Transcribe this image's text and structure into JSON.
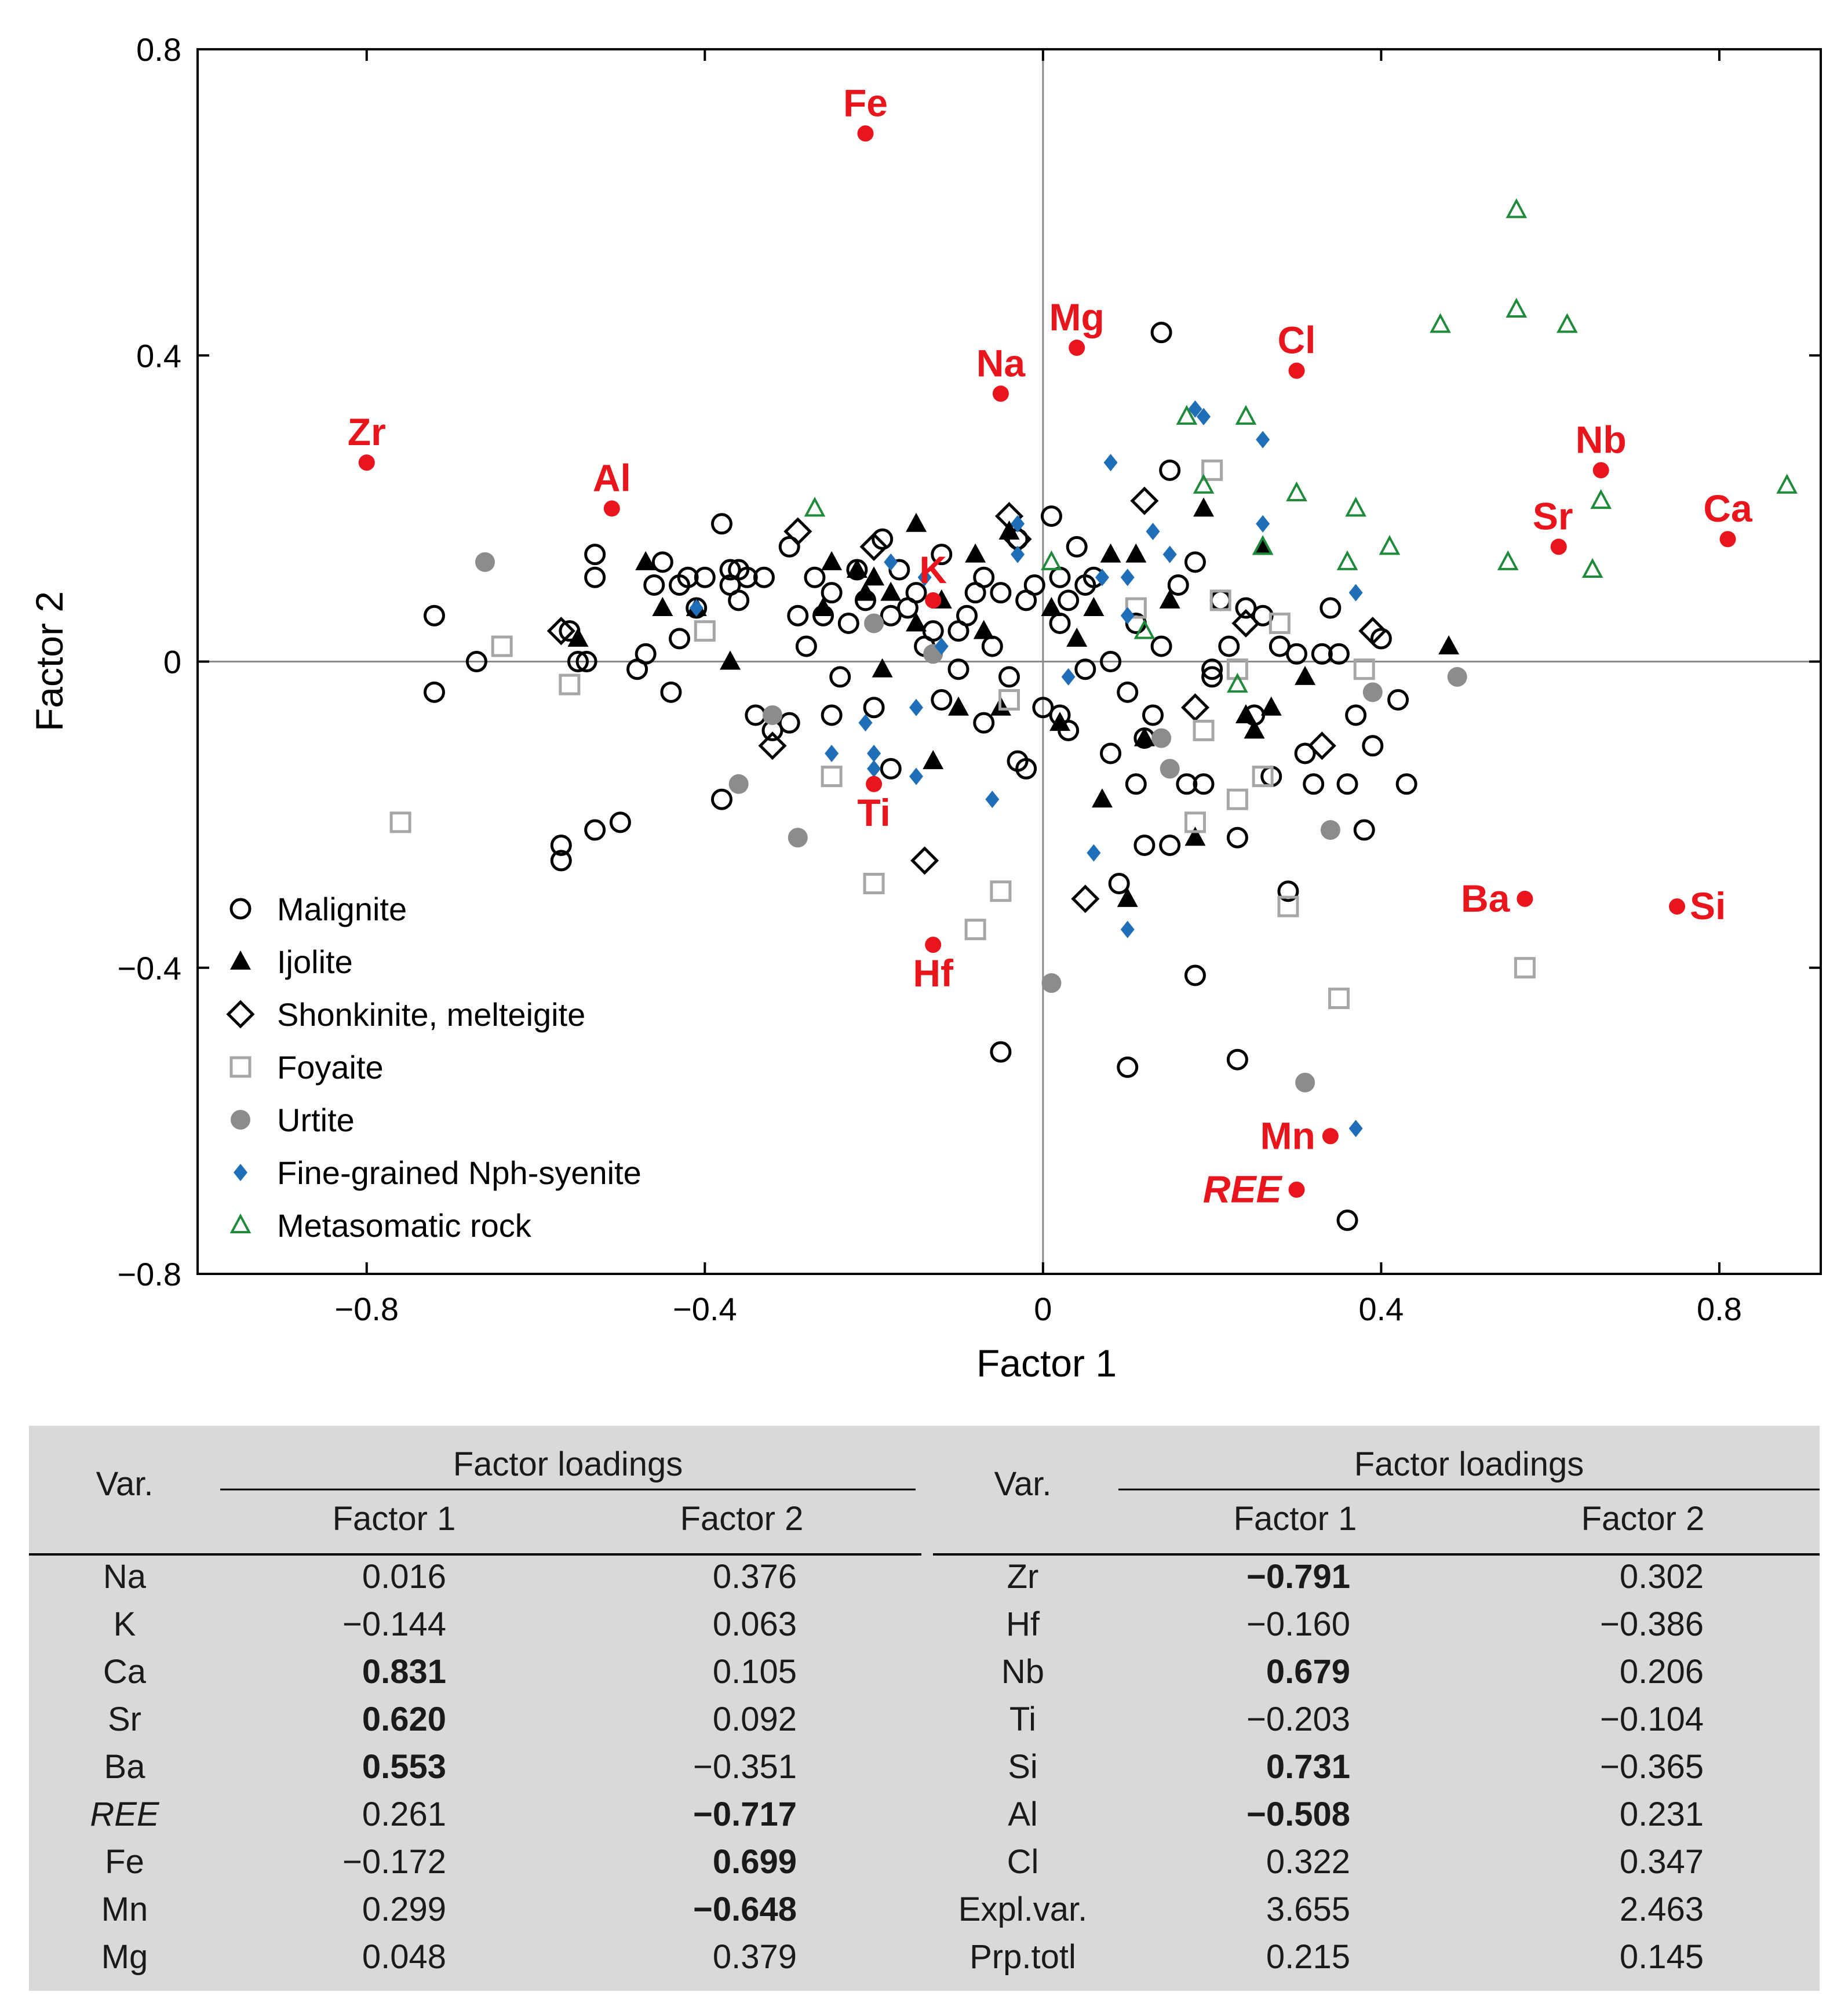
{
  "chart_data": {
    "type": "scatter",
    "xlabel": "Factor 1",
    "ylabel": "Factor 2",
    "xlim": [
      -1.0,
      0.92
    ],
    "ylim": [
      -0.8,
      0.8
    ],
    "xticks": [
      -0.8,
      -0.4,
      0,
      0.4,
      0.8
    ],
    "xtick_labels": [
      "−0.8",
      "−0.4",
      "0",
      "0.4",
      "0.8"
    ],
    "yticks": [
      -0.8,
      -0.4,
      0,
      0.4,
      0.8
    ],
    "ytick_labels": [
      "−0.8",
      "−0.4",
      "0",
      "0.4",
      "0.8"
    ],
    "legend_position": "bottom-left",
    "colors": {
      "accent": "#e8161c",
      "fine": "#1f6fb8",
      "meta": "#1e8a3a",
      "urtite": "#8c8c8c",
      "foyaite": "#a6a6a6",
      "black": "#000000",
      "table_bg": "#d9d9d9"
    },
    "series": [
      {
        "name": "Malignite",
        "marker": "circle-open",
        "x": [
          -0.72,
          -0.72,
          -0.67,
          -0.57,
          -0.57,
          -0.56,
          -0.55,
          -0.54,
          -0.53,
          -0.53,
          -0.53,
          -0.5,
          -0.48,
          -0.47,
          -0.46,
          -0.44,
          -0.43,
          -0.43,
          -0.42,
          -0.41,
          -0.4,
          -0.38,
          -0.38,
          -0.37,
          -0.37,
          -0.36,
          -0.36,
          -0.35,
          -0.34,
          -0.33,
          -0.32,
          -0.3,
          -0.29,
          -0.28,
          -0.27,
          -0.26,
          -0.25,
          -0.25,
          -0.24,
          -0.23,
          -0.22,
          -0.21,
          -0.2,
          -0.19,
          -0.18,
          -0.18,
          -0.17,
          -0.16,
          -0.14,
          -0.13,
          -0.12,
          -0.12,
          -0.1,
          -0.09,
          -0.08,
          -0.07,
          -0.07,
          -0.06,
          -0.05,
          -0.04,
          -0.03,
          -0.02,
          -0.02,
          -0.01,
          0.0,
          0.01,
          0.02,
          0.02,
          0.03,
          0.03,
          0.04,
          0.05,
          0.06,
          0.08,
          0.09,
          0.1,
          0.11,
          0.11,
          0.12,
          0.13,
          0.14,
          0.15,
          0.15,
          0.16,
          0.17,
          0.18,
          0.19,
          0.2,
          0.21,
          0.22,
          0.23,
          0.24,
          0.25,
          0.26,
          0.27,
          0.28,
          0.29,
          0.3,
          0.31,
          0.32,
          0.33,
          0.34,
          0.35,
          0.36,
          0.37,
          0.38,
          0.39,
          0.4,
          0.42,
          0.43,
          -0.05,
          0.1,
          0.18,
          0.23,
          0.36,
          -0.45,
          -0.3,
          -0.1,
          0.05,
          0.08,
          0.14,
          0.2,
          -0.15,
          0.02,
          -0.03,
          0.12
        ],
        "y": [
          0.06,
          -0.04,
          0.0,
          -0.24,
          -0.26,
          0.04,
          0.0,
          0.0,
          0.14,
          -0.22,
          0.11,
          -0.21,
          -0.01,
          0.01,
          0.1,
          -0.04,
          0.03,
          0.1,
          0.11,
          0.07,
          0.11,
          -0.18,
          0.18,
          0.1,
          0.12,
          0.08,
          0.12,
          0.11,
          -0.07,
          0.11,
          -0.09,
          0.15,
          0.06,
          0.02,
          0.11,
          0.06,
          -0.07,
          0.09,
          -0.02,
          0.05,
          0.12,
          0.08,
          -0.06,
          0.16,
          0.06,
          -0.14,
          0.12,
          0.07,
          0.02,
          0.04,
          -0.05,
          0.14,
          -0.01,
          0.06,
          0.09,
          -0.08,
          0.11,
          0.02,
          0.09,
          -0.02,
          -0.13,
          0.08,
          -0.14,
          0.1,
          -0.06,
          0.19,
          -0.07,
          0.11,
          0.08,
          -0.09,
          0.15,
          -0.01,
          0.11,
          -0.12,
          -0.29,
          -0.04,
          -0.16,
          0.05,
          -0.24,
          -0.07,
          0.43,
          0.25,
          -0.24,
          0.1,
          -0.16,
          0.13,
          -0.16,
          -0.02,
          0.08,
          0.02,
          -0.23,
          0.07,
          -0.07,
          0.06,
          -0.15,
          0.02,
          -0.3,
          0.01,
          -0.12,
          -0.16,
          0.01,
          0.07,
          0.01,
          -0.16,
          -0.07,
          -0.22,
          -0.11,
          0.03,
          -0.05,
          -0.16,
          -0.51,
          -0.53,
          -0.41,
          -0.52,
          -0.73,
          0.13,
          -0.08,
          0.04,
          0.1,
          0.0,
          0.02,
          -0.01,
          0.09,
          0.05,
          0.16,
          -0.1
        ]
      },
      {
        "name": "Ijolite",
        "marker": "triangle-filled",
        "x": [
          -0.55,
          -0.47,
          -0.45,
          -0.41,
          -0.37,
          -0.26,
          -0.25,
          -0.22,
          -0.21,
          -0.2,
          -0.19,
          -0.18,
          -0.15,
          -0.15,
          -0.12,
          -0.08,
          -0.07,
          -0.05,
          -0.04,
          0.01,
          0.02,
          0.04,
          0.06,
          0.07,
          0.08,
          0.1,
          0.11,
          0.12,
          0.15,
          0.18,
          0.19,
          0.24,
          0.25,
          0.26,
          0.27,
          0.31,
          0.48,
          -0.1,
          -0.13
        ],
        "y": [
          0.03,
          0.13,
          0.07,
          0.07,
          0.0,
          0.07,
          0.13,
          0.12,
          0.09,
          0.11,
          -0.01,
          0.09,
          0.18,
          0.05,
          0.08,
          0.14,
          0.04,
          -0.06,
          0.17,
          0.07,
          -0.08,
          0.03,
          0.07,
          -0.18,
          0.14,
          -0.31,
          0.14,
          -0.1,
          0.08,
          -0.23,
          0.2,
          -0.07,
          -0.09,
          0.15,
          -0.06,
          -0.02,
          0.02,
          -0.06,
          -0.13
        ]
      },
      {
        "name": "Shonkinite, melteigite",
        "marker": "diamond-open",
        "x": [
          -0.57,
          -0.32,
          -0.29,
          -0.2,
          -0.14,
          -0.04,
          -0.03,
          0.05,
          0.12,
          0.18,
          0.24,
          0.33,
          0.39
        ],
        "y": [
          0.04,
          -0.11,
          0.17,
          0.15,
          -0.26,
          0.19,
          0.16,
          -0.31,
          0.21,
          -0.06,
          0.05,
          -0.11,
          0.04
        ]
      },
      {
        "name": "Foyaite",
        "marker": "square-open",
        "x": [
          -0.76,
          -0.64,
          -0.56,
          -0.4,
          -0.25,
          -0.2,
          -0.08,
          -0.05,
          -0.04,
          0.11,
          0.18,
          0.19,
          0.21,
          0.2,
          0.23,
          0.26,
          0.28,
          0.29,
          0.35,
          0.38,
          0.57,
          0.23
        ],
        "y": [
          -0.21,
          0.02,
          -0.03,
          0.04,
          -0.15,
          -0.29,
          -0.35,
          -0.3,
          -0.05,
          0.07,
          -0.21,
          -0.09,
          0.08,
          0.25,
          -0.18,
          -0.15,
          0.05,
          -0.32,
          -0.44,
          -0.01,
          -0.4,
          -0.01
        ]
      },
      {
        "name": "Urtite",
        "marker": "circle-filled",
        "x": [
          -0.66,
          -0.36,
          -0.32,
          -0.29,
          -0.2,
          -0.13,
          0.01,
          0.14,
          0.15,
          0.31,
          0.34,
          0.39,
          0.49
        ],
        "y": [
          0.13,
          -0.16,
          -0.07,
          -0.23,
          0.05,
          0.01,
          -0.42,
          -0.1,
          -0.14,
          -0.55,
          -0.22,
          -0.04,
          -0.02
        ]
      },
      {
        "name": "Fine-grained Nph-syenite",
        "marker": "diamond-filled",
        "x": [
          -0.41,
          -0.25,
          -0.21,
          -0.2,
          -0.2,
          -0.18,
          -0.15,
          -0.15,
          -0.14,
          -0.12,
          -0.06,
          -0.03,
          -0.03,
          0.03,
          0.06,
          0.07,
          0.08,
          0.1,
          0.1,
          0.1,
          0.13,
          0.15,
          0.18,
          0.19,
          0.26,
          0.26,
          0.37,
          0.37
        ],
        "y": [
          0.07,
          -0.12,
          -0.08,
          -0.12,
          -0.14,
          0.13,
          -0.06,
          -0.15,
          0.11,
          0.02,
          -0.18,
          0.14,
          0.18,
          -0.02,
          -0.25,
          0.11,
          0.26,
          -0.35,
          0.11,
          0.06,
          0.17,
          0.14,
          0.33,
          0.32,
          0.18,
          0.29,
          0.09,
          -0.61
        ]
      },
      {
        "name": "Metasomatic rock",
        "marker": "triangle-open",
        "x": [
          -0.27,
          0.01,
          0.12,
          0.17,
          0.19,
          0.24,
          0.26,
          0.3,
          0.36,
          0.37,
          0.41,
          0.47,
          0.55,
          0.56,
          0.56,
          0.62,
          0.65,
          0.66,
          0.88,
          0.23
        ],
        "y": [
          0.2,
          0.13,
          0.04,
          0.32,
          0.23,
          0.32,
          0.15,
          0.22,
          0.13,
          0.2,
          0.15,
          0.44,
          0.13,
          0.46,
          0.59,
          0.44,
          0.12,
          0.21,
          0.23,
          -0.03
        ]
      }
    ],
    "variables": [
      {
        "label": "Fe",
        "x": -0.21,
        "y": 0.69,
        "pos": "above",
        "italic": false
      },
      {
        "label": "Zr",
        "x": -0.8,
        "y": 0.26,
        "pos": "above",
        "italic": false
      },
      {
        "label": "Al",
        "x": -0.51,
        "y": 0.2,
        "pos": "above",
        "italic": false
      },
      {
        "label": "Na",
        "x": -0.05,
        "y": 0.35,
        "pos": "above",
        "italic": false
      },
      {
        "label": "Mg",
        "x": 0.04,
        "y": 0.41,
        "pos": "above",
        "italic": false
      },
      {
        "label": "Cl",
        "x": 0.3,
        "y": 0.38,
        "pos": "above",
        "italic": false
      },
      {
        "label": "Nb",
        "x": 0.66,
        "y": 0.25,
        "pos": "above",
        "italic": false
      },
      {
        "label": "Sr",
        "x": 0.61,
        "y": 0.15,
        "pos": "above-left",
        "italic": false
      },
      {
        "label": "Ca",
        "x": 0.81,
        "y": 0.16,
        "pos": "above",
        "italic": false
      },
      {
        "label": "K",
        "x": -0.13,
        "y": 0.08,
        "pos": "above",
        "italic": false
      },
      {
        "label": "Ti",
        "x": -0.2,
        "y": -0.16,
        "pos": "below",
        "italic": false
      },
      {
        "label": "Hf",
        "x": -0.13,
        "y": -0.37,
        "pos": "below",
        "italic": false
      },
      {
        "label": "Ba",
        "x": 0.57,
        "y": -0.31,
        "pos": "left",
        "italic": false
      },
      {
        "label": "Si",
        "x": 0.75,
        "y": -0.32,
        "pos": "right",
        "italic": false
      },
      {
        "label": "Mn",
        "x": 0.34,
        "y": -0.62,
        "pos": "left",
        "italic": false
      },
      {
        "label": "REE",
        "x": 0.3,
        "y": -0.69,
        "pos": "left",
        "italic": true
      }
    ]
  },
  "table": {
    "group_header": "Factor loadings",
    "var_header": "Var.",
    "factor1_header": "Factor 1",
    "factor2_header": "Factor 2",
    "left_rows": [
      {
        "var": "Na",
        "f1": "0.016",
        "f2": "0.376",
        "f1_bold": false,
        "f2_bold": false,
        "italic": false
      },
      {
        "var": "K",
        "f1": "−0.144",
        "f2": "0.063",
        "f1_bold": false,
        "f2_bold": false,
        "italic": false
      },
      {
        "var": "Ca",
        "f1": "0.831",
        "f2": "0.105",
        "f1_bold": true,
        "f2_bold": false,
        "italic": false
      },
      {
        "var": "Sr",
        "f1": "0.620",
        "f2": "0.092",
        "f1_bold": true,
        "f2_bold": false,
        "italic": false
      },
      {
        "var": "Ba",
        "f1": "0.553",
        "f2": "−0.351",
        "f1_bold": true,
        "f2_bold": false,
        "italic": false
      },
      {
        "var": "REE",
        "f1": "0.261",
        "f2": "−0.717",
        "f1_bold": false,
        "f2_bold": true,
        "italic": true
      },
      {
        "var": "Fe",
        "f1": "−0.172",
        "f2": "0.699",
        "f1_bold": false,
        "f2_bold": true,
        "italic": false
      },
      {
        "var": "Mn",
        "f1": "0.299",
        "f2": "−0.648",
        "f1_bold": false,
        "f2_bold": true,
        "italic": false
      },
      {
        "var": "Mg",
        "f1": "0.048",
        "f2": "0.379",
        "f1_bold": false,
        "f2_bold": false,
        "italic": false
      }
    ],
    "right_rows": [
      {
        "var": "Zr",
        "f1": "−0.791",
        "f2": "0.302",
        "f1_bold": true,
        "f2_bold": false,
        "italic": false
      },
      {
        "var": "Hf",
        "f1": "−0.160",
        "f2": "−0.386",
        "f1_bold": false,
        "f2_bold": false,
        "italic": false
      },
      {
        "var": "Nb",
        "f1": "0.679",
        "f2": "0.206",
        "f1_bold": true,
        "f2_bold": false,
        "italic": false
      },
      {
        "var": "Ti",
        "f1": "−0.203",
        "f2": "−0.104",
        "f1_bold": false,
        "f2_bold": false,
        "italic": false
      },
      {
        "var": "Si",
        "f1": "0.731",
        "f2": "−0.365",
        "f1_bold": true,
        "f2_bold": false,
        "italic": false
      },
      {
        "var": "Al",
        "f1": "−0.508",
        "f2": "0.231",
        "f1_bold": true,
        "f2_bold": false,
        "italic": false
      },
      {
        "var": "Cl",
        "f1": "0.322",
        "f2": "0.347",
        "f1_bold": false,
        "f2_bold": false,
        "italic": false
      },
      {
        "var": "Expl.var.",
        "f1": "3.655",
        "f2": "2.463",
        "f1_bold": false,
        "f2_bold": false,
        "italic": false
      },
      {
        "var": "Prp.totl",
        "f1": "0.215",
        "f2": "0.145",
        "f1_bold": false,
        "f2_bold": false,
        "italic": false
      }
    ]
  }
}
